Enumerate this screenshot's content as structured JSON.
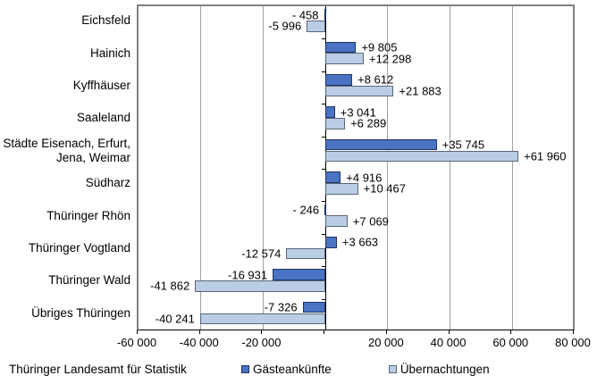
{
  "footer": {
    "source": "Thüringer Landesamt für Statistik"
  },
  "chart_data": {
    "type": "bar",
    "orientation": "horizontal",
    "title": "",
    "xlabel": "",
    "ylabel": "",
    "grid": true,
    "legend_position": "bottom",
    "categories": [
      "Eichsfeld",
      "Hainich",
      "Kyffhäuser",
      "Saaleland",
      "Städte Eisenach, Erfurt,\nJena, Weimar",
      "Südharz",
      "Thüringer Rhön",
      "Thüringer Vogtland",
      "Thüringer Wald",
      "Übriges Thüringen"
    ],
    "series": [
      {
        "name": "Gästeankünfte",
        "color": "#4a73c4",
        "border_color": "#1f3460",
        "values": [
          -458,
          9805,
          8612,
          3041,
          35745,
          4916,
          -246,
          3663,
          -16931,
          -7326
        ],
        "labels": [
          "- 458",
          "+9 805",
          "+8 612",
          "+3 041",
          "+35 745",
          "+4 916",
          "- 246",
          "+3 663",
          "-16 931",
          "-7 326"
        ]
      },
      {
        "name": "Übernachtungen",
        "color": "#b9cde5",
        "border_color": "#5a6678",
        "values": [
          -5996,
          12298,
          21883,
          6289,
          61960,
          10467,
          7069,
          -12574,
          -41862,
          -40241
        ],
        "labels": [
          "-5 996",
          "+12 298",
          "+21 883",
          "+6 289",
          "+61 960",
          "+10 467",
          "+7 069",
          "-12 574",
          "-41 862",
          "-40 241"
        ]
      }
    ],
    "x_axis": {
      "min": -60000,
      "max": 80000,
      "tick_step": 20000,
      "ticks": [
        {
          "value": -60000,
          "label": "-60 000"
        },
        {
          "value": -40000,
          "label": "-40 000"
        },
        {
          "value": -20000,
          "label": "-20 000"
        },
        {
          "value": 0,
          "label": ""
        },
        {
          "value": 20000,
          "label": "20 000"
        },
        {
          "value": 40000,
          "label": "40 000"
        },
        {
          "value": 60000,
          "label": "60 000"
        },
        {
          "value": 80000,
          "label": "80 000"
        }
      ]
    },
    "colors": {
      "grid": "#a0a0a0",
      "frame": "#808080",
      "axis": "#000000",
      "text": "#000000"
    }
  }
}
